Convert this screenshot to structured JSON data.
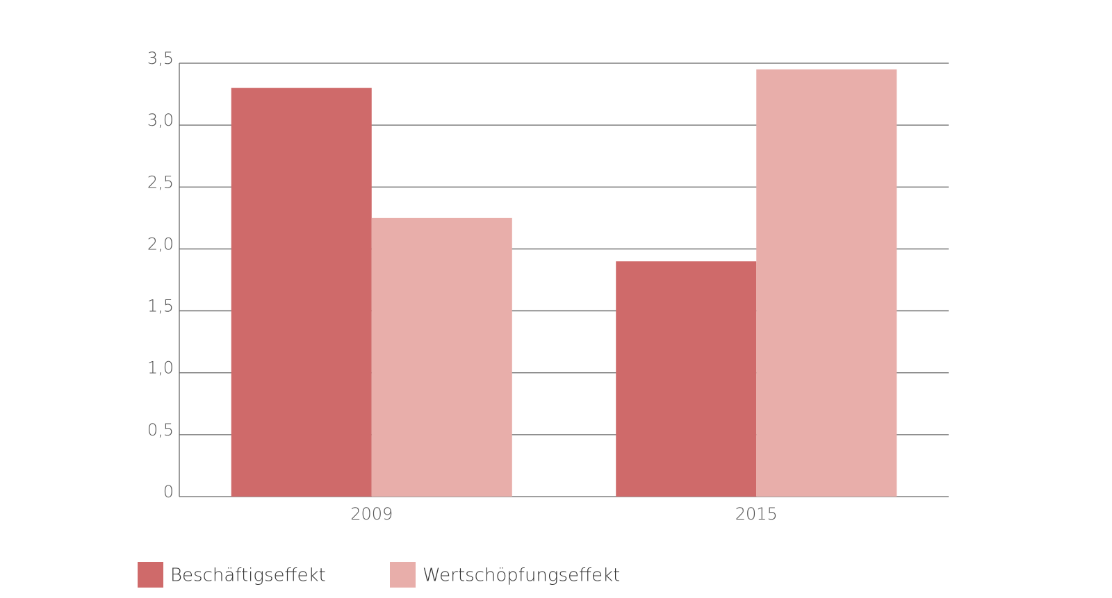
{
  "chart_data": {
    "type": "bar",
    "categories": [
      "2009",
      "2015"
    ],
    "series": [
      {
        "name": "Beschäftigseffekt",
        "color": "#cf6a6a",
        "values": [
          3.3,
          1.9
        ]
      },
      {
        "name": "Wertschöpfungseffekt",
        "color": "#e8aeaa",
        "values": [
          2.25,
          3.45
        ]
      }
    ],
    "ylim": [
      0,
      3.5
    ],
    "yticks": [
      0,
      {
        "value": 0.5,
        "label": "0,5"
      },
      {
        "value": 1,
        "label": "1,0"
      },
      {
        "value": 1.5,
        "label": "1,5"
      },
      {
        "value": 2,
        "label": "2,0"
      },
      {
        "value": 2.5,
        "label": "2,5"
      },
      {
        "value": 3,
        "label": "3,0"
      },
      {
        "value": 3.5,
        "label": "3,5"
      }
    ],
    "grid": true
  }
}
